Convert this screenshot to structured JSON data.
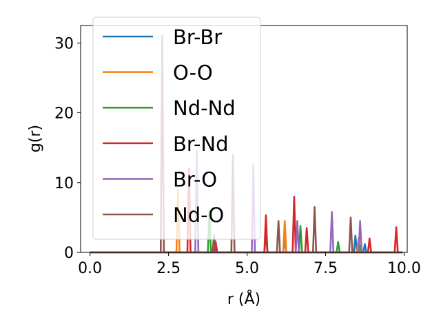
{
  "chart_data": {
    "type": "line",
    "xlabel": "r (Å)",
    "ylabel": "g(r)",
    "xlim": [
      -0.3,
      10.1
    ],
    "ylim": [
      0,
      32.5
    ],
    "xticks": [
      0.0,
      2.5,
      5.0,
      7.5,
      10.0
    ],
    "xtick_labels": [
      "0.0",
      "2.5",
      "5.0",
      "7.5",
      "10.0"
    ],
    "yticks": [
      0,
      10,
      20,
      30
    ],
    "ytick_labels": [
      "0",
      "10",
      "20",
      "30"
    ],
    "grid": false,
    "legend_position": "upper-left",
    "series": [
      {
        "name": "Br-Br",
        "color": "#1f77b4",
        "peaks": [
          [
            6.2,
            2.0
          ],
          [
            8.45,
            2.4
          ],
          [
            8.75,
            1.2
          ]
        ]
      },
      {
        "name": "O-O",
        "color": "#ff7f0e",
        "peaks": [
          [
            2.8,
            9.0
          ],
          [
            6.2,
            4.5
          ],
          [
            8.55,
            2.0
          ]
        ]
      },
      {
        "name": "Nd-Nd",
        "color": "#2ca02c",
        "peaks": [
          [
            3.8,
            6.0
          ],
          [
            5.6,
            2.5
          ],
          [
            6.7,
            3.8
          ],
          [
            7.9,
            1.5
          ],
          [
            8.6,
            1.0
          ]
        ]
      },
      {
        "name": "Br-Nd",
        "color": "#d62728",
        "peaks": [
          [
            3.15,
            12.0
          ],
          [
            4.0,
            1.5
          ],
          [
            5.6,
            5.3
          ],
          [
            6.5,
            8.0
          ],
          [
            6.9,
            3.5
          ],
          [
            8.9,
            2.0
          ],
          [
            9.75,
            3.6
          ]
        ]
      },
      {
        "name": "Br-O",
        "color": "#9467bd",
        "peaks": [
          [
            3.4,
            14.5
          ],
          [
            5.2,
            12.5
          ],
          [
            6.6,
            4.5
          ],
          [
            7.7,
            5.8
          ],
          [
            8.6,
            4.5
          ]
        ]
      },
      {
        "name": "Nd-O",
        "color": "#8c564b",
        "peaks": [
          [
            2.3,
            31.0
          ],
          [
            3.95,
            2.5
          ],
          [
            4.55,
            14.0
          ],
          [
            6.0,
            4.5
          ],
          [
            7.15,
            6.5
          ],
          [
            8.3,
            5.0
          ]
        ]
      }
    ]
  }
}
